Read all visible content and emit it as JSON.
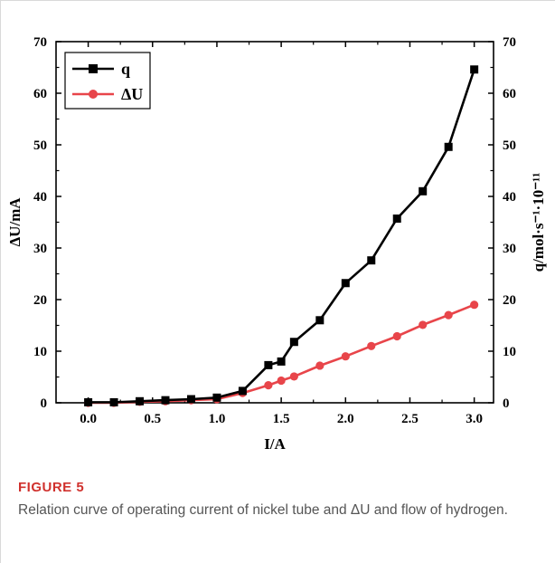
{
  "chart_data": {
    "type": "line",
    "xlabel": "I/A",
    "ylabel_left": "ΔU/mA",
    "ylabel_right": "q/mol·s⁻¹·10⁻¹¹",
    "xlim": [
      -0.25,
      3.15
    ],
    "ylim": [
      0,
      70
    ],
    "x_ticks": [
      "0.0",
      "0.5",
      "1.0",
      "1.5",
      "2.0",
      "2.5",
      "3.0"
    ],
    "y_ticks": [
      "0",
      "10",
      "20",
      "30",
      "40",
      "50",
      "60",
      "70"
    ],
    "legend_position": "top-left",
    "grid": false,
    "series": [
      {
        "name": "q",
        "color": "#000000",
        "marker": "square",
        "x": [
          0.0,
          0.2,
          0.4,
          0.6,
          0.8,
          1.0,
          1.2,
          1.4,
          1.5,
          1.6,
          1.8,
          2.0,
          2.2,
          2.4,
          2.6,
          2.8,
          3.0
        ],
        "values": [
          0.1,
          0.1,
          0.3,
          0.5,
          0.7,
          1.0,
          2.3,
          7.3,
          8.0,
          11.8,
          16.0,
          23.2,
          27.6,
          35.7,
          41.0,
          49.6,
          64.6
        ]
      },
      {
        "name": "ΔU",
        "color": "#e8454a",
        "marker": "circle",
        "x": [
          0.0,
          0.2,
          0.4,
          0.6,
          0.8,
          1.0,
          1.2,
          1.4,
          1.5,
          1.6,
          1.8,
          2.0,
          2.2,
          2.4,
          2.6,
          2.8,
          3.0
        ],
        "values": [
          0.0,
          0.0,
          0.2,
          0.3,
          0.5,
          0.7,
          1.9,
          3.4,
          4.3,
          5.1,
          7.2,
          9.0,
          11.0,
          12.9,
          15.1,
          17.0,
          19.0
        ]
      }
    ]
  },
  "caption": {
    "label": "FIGURE 5",
    "text": "Relation curve of operating current of nickel tube and ΔU and flow of hydrogen."
  }
}
